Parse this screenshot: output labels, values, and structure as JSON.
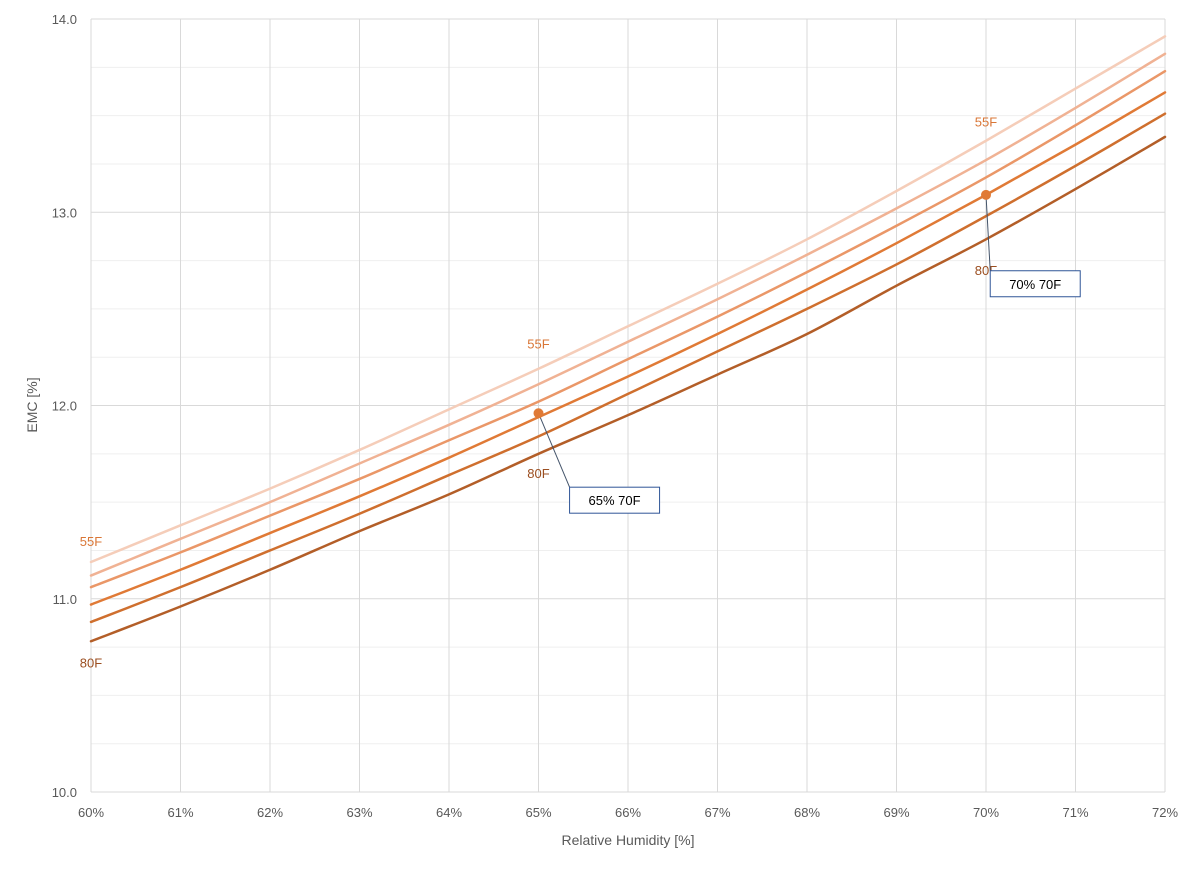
{
  "chart_data": {
    "type": "line",
    "title": "",
    "xlabel": "Relative Humidity [%]",
    "ylabel": "EMC [%]",
    "xlim": [
      60,
      72
    ],
    "ylim": [
      10.0,
      14.0
    ],
    "x_major_ticks": [
      60,
      61,
      62,
      63,
      64,
      65,
      66,
      67,
      68,
      69,
      70,
      71,
      72
    ],
    "x_tick_labels": [
      "60%",
      "61%",
      "62%",
      "63%",
      "64%",
      "65%",
      "66%",
      "67%",
      "68%",
      "69%",
      "70%",
      "71%",
      "72%"
    ],
    "y_major_ticks": [
      10.0,
      11.0,
      12.0,
      13.0,
      14.0
    ],
    "y_tick_labels": [
      "10.0",
      "11.0",
      "12.0",
      "13.0",
      "14.0"
    ],
    "y_minor_ticks": [
      10.25,
      10.5,
      10.75,
      11.25,
      11.5,
      11.75,
      12.25,
      12.5,
      12.75,
      13.25,
      13.5,
      13.75
    ],
    "grid": true,
    "legend": "none",
    "series": [
      {
        "color": "#f5cdb9",
        "x": [
          60,
          61,
          62,
          63,
          64,
          65,
          66,
          67,
          68,
          69,
          70,
          71,
          72
        ],
        "y": [
          11.19,
          11.38,
          11.57,
          11.77,
          11.98,
          12.19,
          12.41,
          12.63,
          12.86,
          13.11,
          13.37,
          13.64,
          13.91
        ]
      },
      {
        "color": "#f0b294",
        "x": [
          60,
          61,
          62,
          63,
          64,
          65,
          66,
          67,
          68,
          69,
          70,
          71,
          72
        ],
        "y": [
          11.12,
          11.31,
          11.5,
          11.7,
          11.9,
          12.11,
          12.33,
          12.55,
          12.78,
          13.02,
          13.27,
          13.54,
          13.82
        ]
      },
      {
        "color": "#ea9768",
        "x": [
          60,
          61,
          62,
          63,
          64,
          65,
          66,
          67,
          68,
          69,
          70,
          71,
          72
        ],
        "y": [
          11.06,
          11.24,
          11.43,
          11.62,
          11.82,
          12.02,
          12.24,
          12.46,
          12.69,
          12.93,
          13.18,
          13.45,
          13.73
        ]
      },
      {
        "color": "#e07a36",
        "x": [
          60,
          61,
          62,
          63,
          64,
          65,
          66,
          67,
          68,
          69,
          70,
          71,
          72
        ],
        "y": [
          10.97,
          11.15,
          11.34,
          11.53,
          11.73,
          11.94,
          12.15,
          12.37,
          12.6,
          12.84,
          13.09,
          13.35,
          13.62
        ]
      },
      {
        "color": "#cf6f2e",
        "x": [
          60,
          61,
          62,
          63,
          64,
          65,
          66,
          67,
          68,
          69,
          70,
          71,
          72
        ],
        "y": [
          10.88,
          11.06,
          11.25,
          11.44,
          11.64,
          11.84,
          12.06,
          12.28,
          12.5,
          12.73,
          12.98,
          13.24,
          13.51
        ]
      },
      {
        "color": "#b35e28",
        "x": [
          60,
          61,
          62,
          63,
          64,
          65,
          66,
          67,
          68,
          69,
          70,
          71,
          72
        ],
        "y": [
          10.78,
          10.96,
          11.15,
          11.35,
          11.54,
          11.75,
          11.95,
          12.16,
          12.37,
          12.62,
          12.86,
          13.12,
          13.39
        ]
      }
    ],
    "series_labels": [
      {
        "text": "55F",
        "x": 60.0,
        "y": 11.3,
        "color": "#d97636"
      },
      {
        "text": "80F",
        "x": 60.0,
        "y": 10.67,
        "color": "#9b4e20"
      },
      {
        "text": "55F",
        "x": 65.0,
        "y": 12.32,
        "color": "#d97636"
      },
      {
        "text": "80F",
        "x": 65.0,
        "y": 11.65,
        "color": "#9b4e20"
      },
      {
        "text": "55F",
        "x": 70.0,
        "y": 13.47,
        "color": "#d97636"
      },
      {
        "text": "80F",
        "x": 70.0,
        "y": 12.7,
        "color": "#9b4e20"
      }
    ],
    "points": [
      {
        "x": 65,
        "y": 11.96,
        "color": "#e07a36",
        "label": "65% 70F",
        "label_x": 65.85,
        "label_y": 11.51
      },
      {
        "x": 70,
        "y": 13.09,
        "color": "#e07a36",
        "label": "70% 70F",
        "label_x": 70.55,
        "label_y": 12.63
      }
    ],
    "callout_border": "#2f5597"
  }
}
